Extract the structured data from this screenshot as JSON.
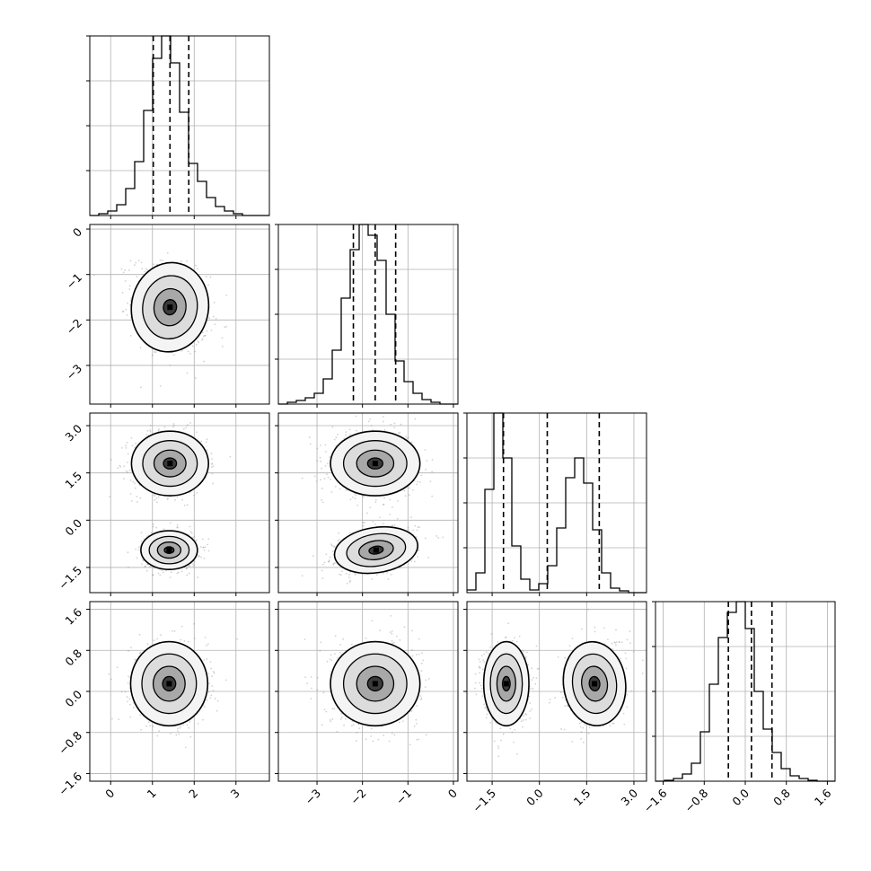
{
  "chart_data": {
    "type": "corner",
    "grid": true,
    "quantiles_shown": [
      0.16,
      0.5,
      0.84
    ],
    "hist_color": "#000000",
    "contour_color": "#000000",
    "scatter_color": "#7f7f7f",
    "params": [
      {
        "range": [
          -0.5,
          3.8
        ],
        "ticks": [
          0,
          1,
          2,
          3
        ],
        "tick_labels": [
          "0",
          "1",
          "2",
          "3"
        ],
        "quantiles": [
          1.02,
          1.42,
          1.87
        ],
        "hist_bin_start": -0.5,
        "hist_bin_width": 0.215,
        "hist_counts": [
          0,
          2,
          5,
          12,
          30,
          60,
          117,
          175,
          200,
          170,
          115,
          58,
          38,
          20,
          10,
          5,
          2,
          0,
          0,
          0
        ]
      },
      {
        "range": [
          -3.85,
          0.1
        ],
        "ticks": [
          -3,
          -2,
          -1,
          0
        ],
        "tick_labels": [
          "−3",
          "−2",
          "−1",
          "0"
        ],
        "quantiles": [
          -2.2,
          -1.72,
          -1.27
        ],
        "hist_bin_start": -3.85,
        "hist_bin_width": 0.1975,
        "hist_counts": [
          0,
          2,
          4,
          7,
          12,
          28,
          60,
          118,
          172,
          200,
          188,
          160,
          100,
          48,
          25,
          12,
          5,
          2,
          0,
          0
        ]
      },
      {
        "range": [
          -2.3,
          3.4
        ],
        "ticks": [
          -1.5,
          0.0,
          1.5,
          3.0
        ],
        "tick_labels": [
          "−1.5",
          "0.0",
          "1.5",
          "3.0"
        ],
        "quantiles": [
          -1.14,
          0.25,
          1.9
        ],
        "hist_bin_start": -2.3,
        "hist_bin_width": 0.285,
        "hist_counts": [
          3,
          22,
          115,
          200,
          150,
          52,
          15,
          3,
          10,
          30,
          72,
          128,
          150,
          122,
          70,
          22,
          5,
          2,
          0,
          0
        ]
      },
      {
        "range": [
          -1.75,
          1.75
        ],
        "ticks": [
          -1.6,
          -0.8,
          0.0,
          0.8,
          1.6
        ],
        "tick_labels": [
          "−1.6",
          "−0.8",
          "0.0",
          "0.8",
          "1.6"
        ],
        "quantiles": [
          -0.33,
          0.12,
          0.52
        ],
        "hist_bin_start": -1.75,
        "hist_bin_width": 0.175,
        "hist_counts": [
          0,
          1,
          3,
          8,
          20,
          55,
          108,
          160,
          188,
          200,
          170,
          100,
          58,
          32,
          14,
          6,
          3,
          1,
          0,
          0
        ]
      }
    ],
    "pairs": [
      {
        "x": 0,
        "y": 1,
        "clusters": [
          {
            "mx": 1.42,
            "my": -1.72,
            "sx": 0.45,
            "sy": 0.48,
            "rho": -0.25
          }
        ]
      },
      {
        "x": 0,
        "y": 2,
        "clusters": [
          {
            "mx": 1.42,
            "my": 1.8,
            "sx": 0.45,
            "sy": 0.5,
            "rho": 0
          },
          {
            "mx": 1.4,
            "my": -0.95,
            "sx": 0.33,
            "sy": 0.3,
            "rho": 0
          }
        ]
      },
      {
        "x": 0,
        "y": 3,
        "clusters": [
          {
            "mx": 1.4,
            "my": 0.15,
            "sx": 0.45,
            "sy": 0.4,
            "rho": 0
          }
        ]
      },
      {
        "x": 1,
        "y": 2,
        "clusters": [
          {
            "mx": -1.72,
            "my": 1.8,
            "sx": 0.48,
            "sy": 0.5,
            "rho": 0
          },
          {
            "mx": -1.7,
            "my": -0.95,
            "sx": 0.45,
            "sy": 0.35,
            "rho": 0.25
          }
        ]
      },
      {
        "x": 1,
        "y": 3,
        "clusters": [
          {
            "mx": -1.72,
            "my": 0.15,
            "sx": 0.48,
            "sy": 0.4,
            "rho": 0
          }
        ]
      },
      {
        "x": 2,
        "y": 3,
        "clusters": [
          {
            "mx": -1.05,
            "my": 0.15,
            "sx": 0.35,
            "sy": 0.4,
            "rho": 0
          },
          {
            "mx": 1.75,
            "my": 0.15,
            "sx": 0.48,
            "sy": 0.4,
            "rho": 0.2
          }
        ]
      }
    ]
  }
}
